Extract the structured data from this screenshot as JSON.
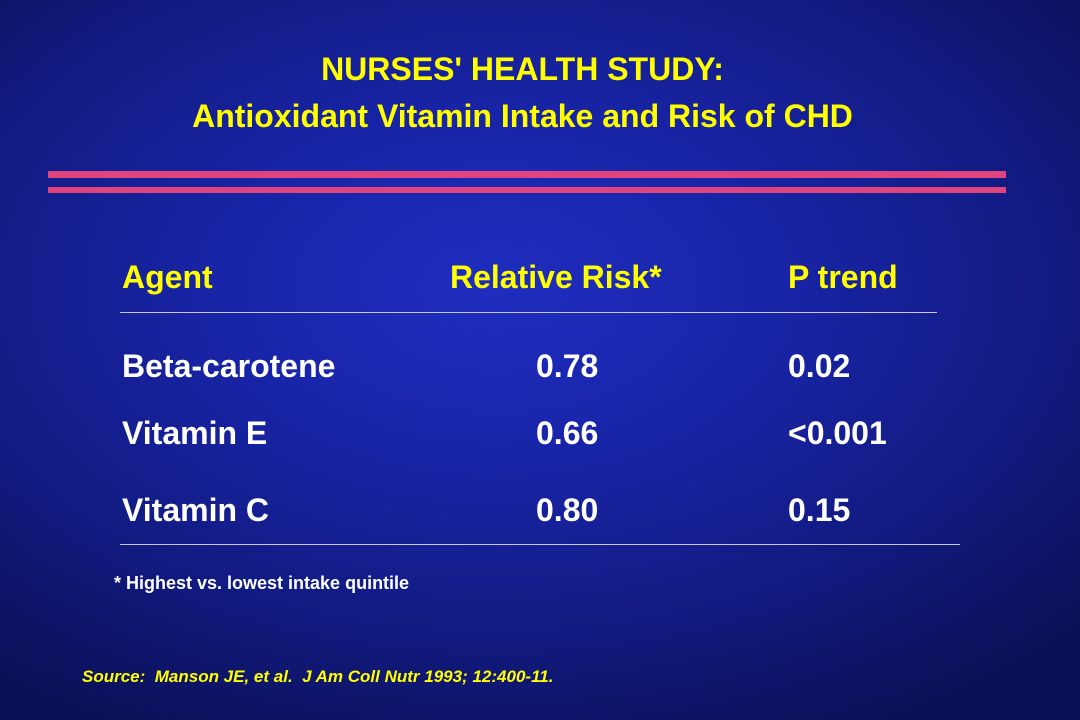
{
  "slide": {
    "title_line1": "NURSES' HEALTH STUDY:",
    "title_line2": "Antioxidant Vitamin Intake and Risk of CHD",
    "colors": {
      "background": "#1824a6",
      "title": "#ffff00",
      "accent_rule": "#e0447e",
      "body_text": "#ffffff"
    }
  },
  "table": {
    "headers": {
      "agent": "Agent",
      "relative_risk": "Relative Risk*",
      "p_trend": "P trend"
    },
    "rows": [
      {
        "agent": "Beta-carotene",
        "relative_risk": "0.78",
        "p_trend": "0.02"
      },
      {
        "agent": "Vitamin E",
        "relative_risk": "0.66",
        "p_trend": "<0.001"
      },
      {
        "agent": "Vitamin C",
        "relative_risk": "0.80",
        "p_trend": "0.15"
      }
    ]
  },
  "footnote": "* Highest vs. lowest intake quintile",
  "source": "Source:  Manson JE, et al.  J Am Coll Nutr 1993; 12:400-11."
}
